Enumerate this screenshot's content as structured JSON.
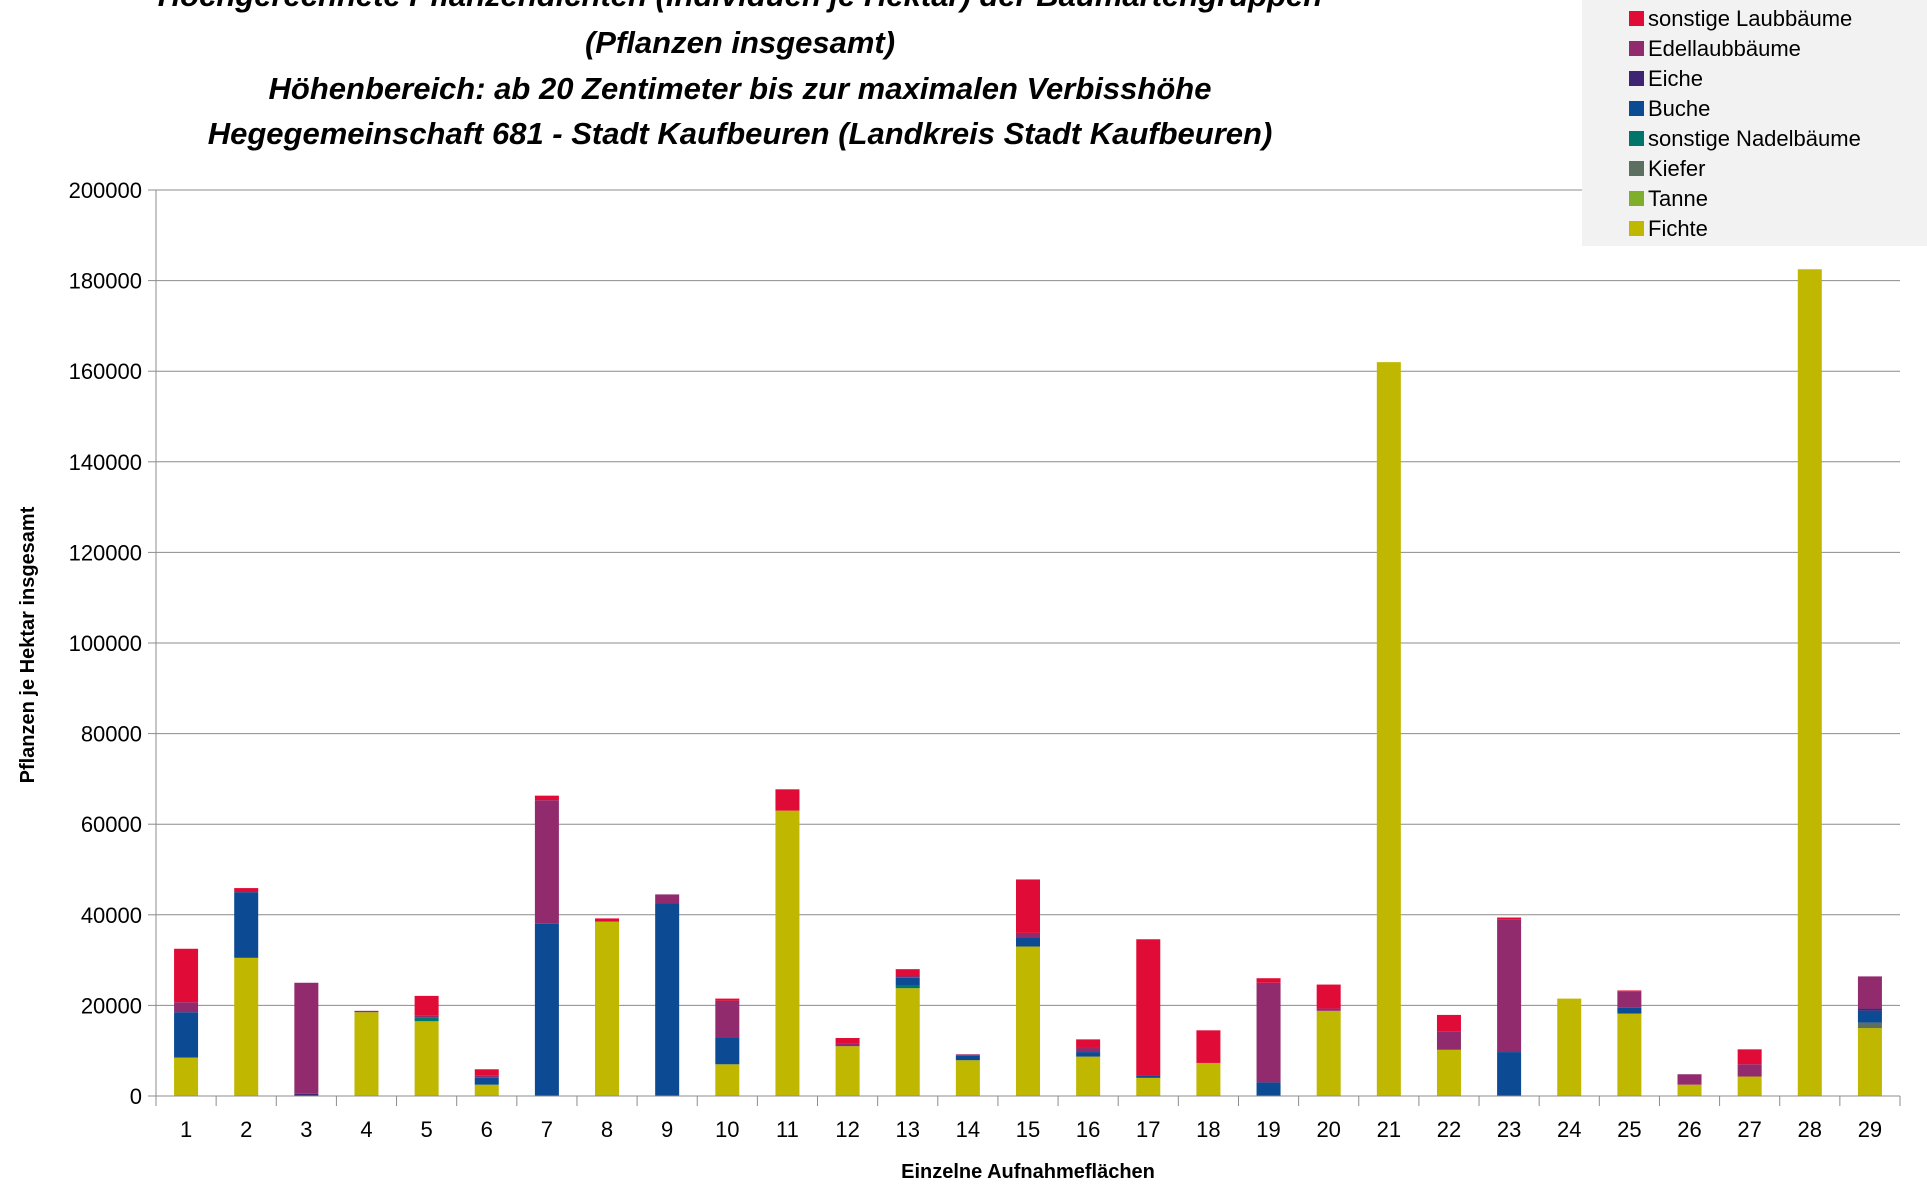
{
  "chart_data": {
    "type": "bar",
    "stacked": true,
    "title_lines": [
      "Hochgerechnete Pflanzendichten (Individuen je Hektar) der Baumartengruppen",
      "(Pflanzen insgesamt)",
      "Höhenbereich: ab 20 Zentimeter bis zur maximalen Verbisshöhe",
      "Hegegemeinschaft 681 - Stadt Kaufbeuren (Landkreis Stadt Kaufbeuren)"
    ],
    "xlabel": "Einzelne Aufnahmeflächen",
    "ylabel": "Pflanzen je Hektar insgesamt",
    "ylim": [
      0,
      200000
    ],
    "yticks": [
      0,
      20000,
      40000,
      60000,
      80000,
      100000,
      120000,
      140000,
      160000,
      180000,
      200000
    ],
    "grid": true,
    "legend_position": "top-right",
    "categories": [
      "1",
      "2",
      "3",
      "4",
      "5",
      "6",
      "7",
      "8",
      "9",
      "10",
      "11",
      "12",
      "13",
      "14",
      "15",
      "16",
      "17",
      "18",
      "19",
      "20",
      "21",
      "22",
      "23",
      "24",
      "25",
      "26",
      "27",
      "28",
      "29"
    ],
    "series": [
      {
        "name": "Fichte",
        "color": "#bfb700",
        "values": [
          8500,
          30500,
          0,
          18500,
          16500,
          2500,
          0,
          38500,
          0,
          7000,
          63000,
          11000,
          23800,
          7900,
          33000,
          8700,
          4000,
          7300,
          0,
          18800,
          162000,
          10200,
          0,
          21500,
          18200,
          2500,
          4300,
          182500,
          15000
        ]
      },
      {
        "name": "Tanne",
        "color": "#7fae2a",
        "values": [
          0,
          0,
          0,
          0,
          0,
          0,
          0,
          0,
          0,
          0,
          0,
          0,
          0,
          0,
          0,
          0,
          0,
          0,
          0,
          0,
          0,
          0,
          0,
          0,
          0,
          0,
          0,
          0,
          0
        ]
      },
      {
        "name": "Kiefer",
        "color": "#5c7062",
        "values": [
          0,
          0,
          0,
          0,
          0,
          0,
          0,
          0,
          0,
          0,
          0,
          0,
          0,
          0,
          0,
          0,
          0,
          0,
          0,
          0,
          0,
          0,
          0,
          0,
          0,
          0,
          0,
          0,
          1200
        ]
      },
      {
        "name": "sonstige Nadelbäume",
        "color": "#00766a",
        "values": [
          0,
          0,
          0,
          0,
          800,
          0,
          0,
          0,
          0,
          0,
          0,
          0,
          700,
          0,
          0,
          0,
          0,
          0,
          0,
          0,
          0,
          0,
          0,
          0,
          0,
          0,
          0,
          0,
          0
        ]
      },
      {
        "name": "Buche",
        "color": "#0c4a94",
        "values": [
          10000,
          14500,
          0,
          0,
          0,
          1500,
          38000,
          0,
          42500,
          6000,
          0,
          0,
          1600,
          1000,
          2000,
          1000,
          600,
          0,
          3000,
          0,
          0,
          0,
          9700,
          0,
          1300,
          0,
          0,
          0,
          2600
        ]
      },
      {
        "name": "Eiche",
        "color": "#3d2573",
        "values": [
          0,
          0,
          500,
          0,
          0,
          0,
          0,
          0,
          0,
          0,
          0,
          0,
          0,
          0,
          0,
          0,
          0,
          0,
          0,
          0,
          0,
          0,
          0,
          0,
          0,
          0,
          0,
          0,
          500
        ]
      },
      {
        "name": "Edellaubbäume",
        "color": "#922a6e",
        "values": [
          2200,
          0,
          24500,
          300,
          500,
          600,
          27300,
          0,
          2000,
          8000,
          0,
          500,
          500,
          300,
          1000,
          1000,
          0,
          0,
          22000,
          500,
          0,
          4000,
          29200,
          0,
          3500,
          2300,
          2700,
          0,
          7100
        ]
      },
      {
        "name": "sonstige Laubbäume",
        "color": "#e10b37",
        "values": [
          11800,
          900,
          0,
          0,
          4300,
          1300,
          1000,
          700,
          0,
          500,
          4700,
          1300,
          1400,
          0,
          11800,
          1800,
          30000,
          7200,
          1000,
          5300,
          0,
          3700,
          500,
          0,
          300,
          0,
          3300,
          0,
          0
        ]
      }
    ]
  }
}
